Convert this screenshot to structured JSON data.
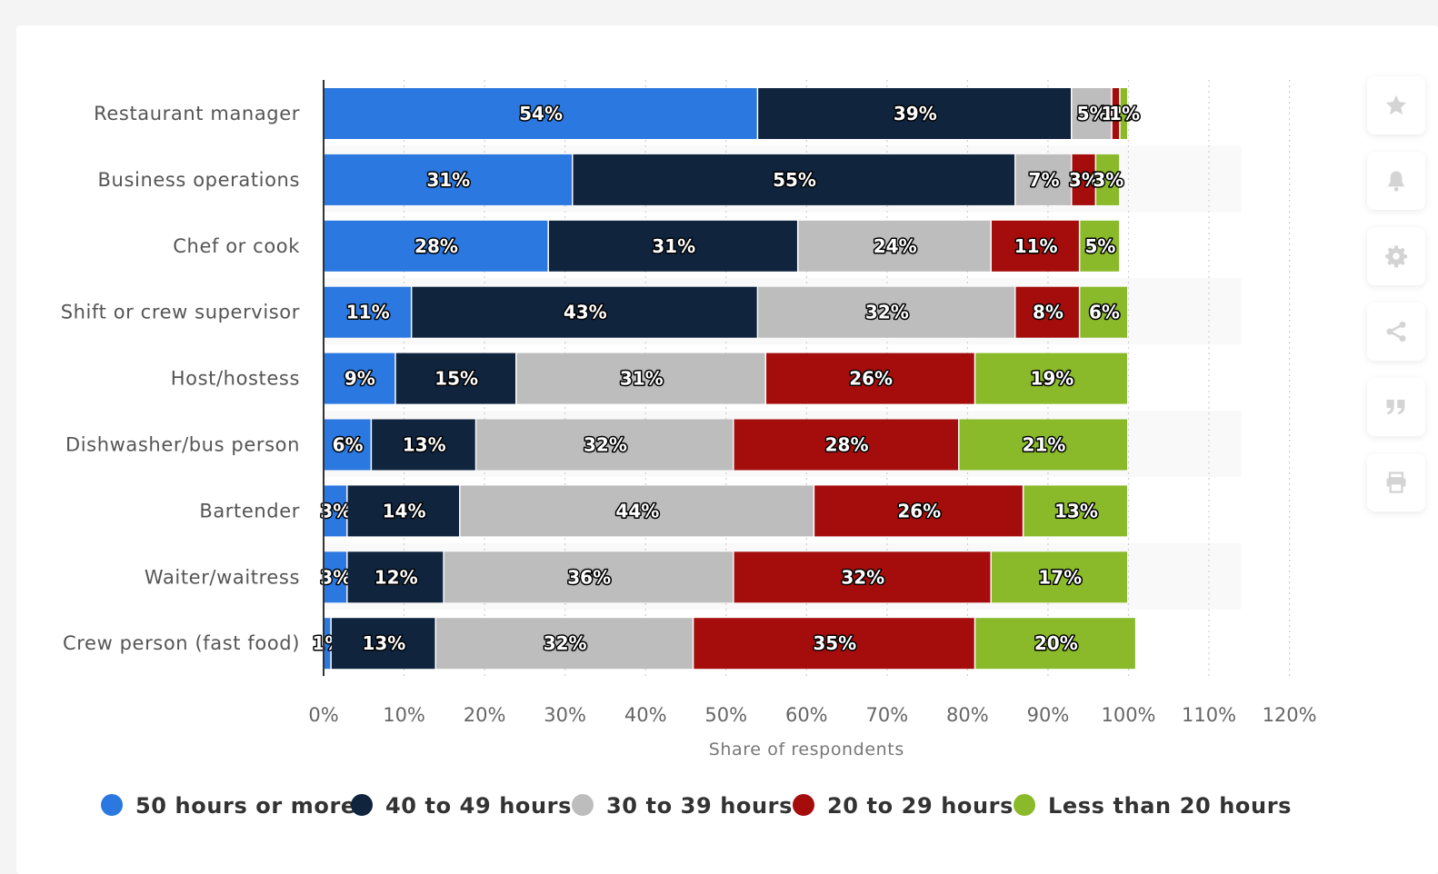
{
  "toolbar": {
    "buttons": [
      {
        "icon": "star-icon"
      },
      {
        "icon": "bell-icon"
      },
      {
        "icon": "gear-icon"
      },
      {
        "icon": "share-icon"
      },
      {
        "icon": "quote-icon"
      },
      {
        "icon": "print-icon"
      }
    ]
  },
  "chart_data": {
    "type": "bar",
    "orientation": "horizontal",
    "stacked": true,
    "title": "",
    "xlabel": "Share of respondents",
    "ylabel": "",
    "xlim": [
      0,
      120
    ],
    "xticks": [
      0,
      10,
      20,
      30,
      40,
      50,
      60,
      70,
      80,
      90,
      100,
      110,
      120
    ],
    "xtick_labels": [
      "0%",
      "10%",
      "20%",
      "30%",
      "40%",
      "50%",
      "60%",
      "70%",
      "80%",
      "90%",
      "100%",
      "110%",
      "120%"
    ],
    "grid": true,
    "legend_position": "bottom",
    "categories": [
      "Restaurant manager",
      "Business operations",
      "Chef or cook",
      "Shift or crew supervisor",
      "Host/hostess",
      "Dishwasher/bus person",
      "Bartender",
      "Waiter/waitress",
      "Crew person (fast food)"
    ],
    "series": [
      {
        "name": "50 hours or more",
        "color": "#2a78e0",
        "values": [
          54,
          31,
          28,
          11,
          9,
          6,
          3,
          3,
          1
        ]
      },
      {
        "name": "40 to 49 hours",
        "color": "#10243e",
        "values": [
          39,
          55,
          31,
          43,
          15,
          13,
          14,
          12,
          13
        ]
      },
      {
        "name": "30 to 39 hours",
        "color": "#bdbdbd",
        "values": [
          5,
          7,
          24,
          32,
          31,
          32,
          44,
          36,
          32
        ]
      },
      {
        "name": "20 to 29 hours",
        "color": "#a50d0d",
        "values": [
          1,
          3,
          11,
          8,
          26,
          28,
          26,
          32,
          35
        ]
      },
      {
        "name": "Less than 20 hours",
        "color": "#8aba2a",
        "values": [
          1,
          3,
          5,
          6,
          19,
          21,
          13,
          17,
          20
        ]
      }
    ]
  }
}
